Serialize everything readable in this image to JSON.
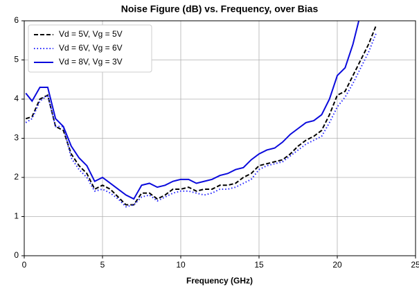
{
  "chart_data": {
    "type": "line",
    "title": "Noise Figure (dB) vs. Frequency, over Bias",
    "x_label": "Frequency (GHz)",
    "x": [
      0.1,
      0.5,
      1,
      1.5,
      2,
      2.5,
      3,
      3.5,
      4,
      4.5,
      5,
      5.5,
      6,
      6.5,
      7,
      7.5,
      8,
      8.5,
      9,
      9.5,
      10,
      10.5,
      11,
      11.5,
      12,
      12.5,
      13,
      13.5,
      14,
      14.5,
      15,
      15.5,
      16,
      16.5,
      17,
      17.5,
      18,
      18.5,
      19,
      19.5,
      20,
      20.5,
      21,
      21.5,
      22,
      22.5
    ],
    "series": [
      {
        "name": "Vd = 5V, Vg = 5V",
        "color": "#000000",
        "dash": "dashed",
        "values": [
          3.5,
          3.55,
          4.0,
          4.1,
          3.3,
          3.2,
          2.6,
          2.3,
          2.1,
          1.7,
          1.8,
          1.7,
          1.5,
          1.3,
          1.3,
          1.6,
          1.6,
          1.45,
          1.55,
          1.7,
          1.7,
          1.75,
          1.65,
          1.7,
          1.7,
          1.8,
          1.8,
          1.85,
          2.0,
          2.1,
          2.3,
          2.35,
          2.4,
          2.45,
          2.6,
          2.8,
          2.95,
          3.05,
          3.2,
          3.6,
          4.1,
          4.2,
          4.6,
          5.0,
          5.4,
          5.9
        ]
      },
      {
        "name": "Vd = 6V, Vg = 6V",
        "color": "#1f1fff",
        "dash": "dotted",
        "values": [
          3.4,
          3.5,
          3.95,
          4.1,
          3.3,
          3.3,
          2.5,
          2.2,
          2.0,
          1.65,
          1.7,
          1.6,
          1.45,
          1.25,
          1.3,
          1.5,
          1.55,
          1.4,
          1.5,
          1.6,
          1.65,
          1.65,
          1.6,
          1.55,
          1.6,
          1.7,
          1.7,
          1.75,
          1.85,
          1.95,
          2.2,
          2.3,
          2.35,
          2.4,
          2.55,
          2.7,
          2.85,
          2.95,
          3.05,
          3.4,
          3.8,
          4.05,
          4.4,
          4.8,
          5.2,
          5.7
        ]
      },
      {
        "name": "Vd = 8V, Vg = 3V",
        "color": "#0a0adc",
        "dash": "solid",
        "values": [
          4.15,
          3.95,
          4.3,
          4.3,
          3.5,
          3.3,
          2.8,
          2.5,
          2.3,
          1.9,
          2.0,
          1.85,
          1.7,
          1.55,
          1.45,
          1.8,
          1.85,
          1.75,
          1.8,
          1.9,
          1.95,
          1.95,
          1.85,
          1.9,
          1.95,
          2.05,
          2.1,
          2.2,
          2.25,
          2.45,
          2.6,
          2.7,
          2.75,
          2.9,
          3.1,
          3.25,
          3.4,
          3.45,
          3.6,
          4.0,
          4.6,
          4.8,
          5.4,
          6.2,
          null,
          null
        ]
      }
    ],
    "xlim": [
      0,
      25
    ],
    "xticks": [
      0,
      5,
      10,
      15,
      20,
      25
    ],
    "ylim": [
      0,
      6
    ],
    "yticks": [
      0,
      1,
      2,
      3,
      4,
      5,
      6
    ],
    "grid": true,
    "legend": "upper left"
  }
}
